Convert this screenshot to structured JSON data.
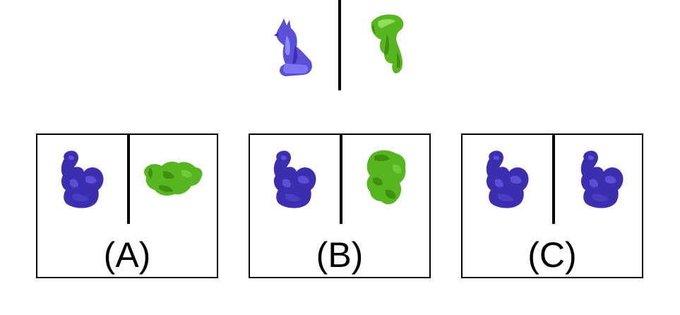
{
  "colors": {
    "blue_dark": "#3b2fb0",
    "blue_mid": "#5a4fd6",
    "blue_light": "#7d74f2",
    "green_dark": "#3f8f10",
    "green_mid": "#57b51f",
    "green_light": "#8ee05a"
  },
  "prompt": {
    "left_figure": "fox-figure-blue",
    "right_figure": "fox-figure-green-partial"
  },
  "options": [
    {
      "label": "(A)",
      "left_figure": "squirrel-figure-blue",
      "right_figure": "squirrel-figure-green-rotated"
    },
    {
      "label": "(B)",
      "left_figure": "squirrel-figure-blue",
      "right_figure": "squirrel-figure-green-rotated"
    },
    {
      "label": "(C)",
      "left_figure": "squirrel-figure-blue",
      "right_figure": "squirrel-figure-blue"
    }
  ]
}
